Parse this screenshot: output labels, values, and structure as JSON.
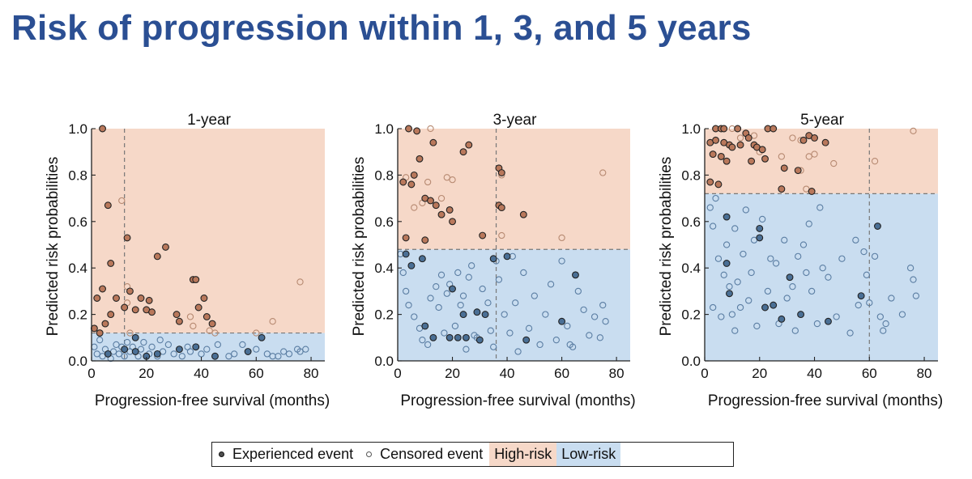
{
  "title": "Risk of progression within 1, 3, and 5 years",
  "colors": {
    "title": "#2b4f93",
    "high_risk_fill": "#f6d8c8",
    "low_risk_fill": "#c9ddf0",
    "event_high": "#b9785b",
    "event_low": "#4a6f95",
    "censored_high": "#b78a72",
    "censored_low": "#5b7ea3"
  },
  "legend": {
    "experienced": "Experienced event",
    "censored": "Censored event",
    "high_risk": "High-risk",
    "low_risk": "Low-risk"
  },
  "chart_data": [
    {
      "type": "scatter",
      "title": "1-year",
      "xlabel": "Progression-free survival (months)",
      "ylabel": "Predicted risk probabilities",
      "xlim": [
        0,
        85
      ],
      "ylim": [
        0,
        1
      ],
      "xticks": [
        "0",
        "20",
        "40",
        "60",
        "80"
      ],
      "yticks": [
        "0.0",
        "0.2",
        "0.4",
        "0.6",
        "0.8",
        "1.0"
      ],
      "threshold": 0.12,
      "time_cutoff": 12,
      "events": [
        [
          4,
          1.0
        ],
        [
          6,
          0.67
        ],
        [
          7,
          0.42
        ],
        [
          2,
          0.27
        ],
        [
          4,
          0.31
        ],
        [
          5,
          0.16
        ],
        [
          7,
          0.2
        ],
        [
          9,
          0.27
        ],
        [
          12,
          0.23
        ],
        [
          13,
          0.53
        ],
        [
          14,
          0.3
        ],
        [
          16,
          0.22
        ],
        [
          18,
          0.27
        ],
        [
          20,
          0.22
        ],
        [
          21,
          0.26
        ],
        [
          22,
          0.21
        ],
        [
          24,
          0.45
        ],
        [
          27,
          0.49
        ],
        [
          31,
          0.2
        ],
        [
          32,
          0.17
        ],
        [
          37,
          0.35
        ],
        [
          38,
          0.35
        ],
        [
          39,
          0.23
        ],
        [
          41,
          0.27
        ],
        [
          42,
          0.19
        ],
        [
          44,
          0.16
        ],
        [
          1,
          0.14
        ],
        [
          3,
          0.12
        ],
        [
          16,
          0.1
        ],
        [
          6,
          0.03
        ],
        [
          12,
          0.05
        ],
        [
          16,
          0.04
        ],
        [
          20,
          0.02
        ],
        [
          24,
          0.03
        ],
        [
          32,
          0.05
        ],
        [
          38,
          0.06
        ],
        [
          45,
          0.02
        ],
        [
          57,
          0.04
        ],
        [
          62,
          0.1
        ]
      ],
      "censored": [
        [
          11,
          0.69
        ],
        [
          13,
          0.32
        ],
        [
          13,
          0.25
        ],
        [
          14,
          0.12
        ],
        [
          36,
          0.19
        ],
        [
          37,
          0.15
        ],
        [
          43,
          0.13
        ],
        [
          45,
          0.12
        ],
        [
          60,
          0.12
        ],
        [
          66,
          0.17
        ],
        [
          76,
          0.34
        ],
        [
          1,
          0.06
        ],
        [
          2,
          0.03
        ],
        [
          3,
          0.09
        ],
        [
          4,
          0.02
        ],
        [
          5,
          0.05
        ],
        [
          7,
          0.01
        ],
        [
          8,
          0.04
        ],
        [
          9,
          0.07
        ],
        [
          10,
          0.03
        ],
        [
          11,
          0.06
        ],
        [
          12,
          0.02
        ],
        [
          13,
          0.08
        ],
        [
          14,
          0.04
        ],
        [
          15,
          0.06
        ],
        [
          17,
          0.02
        ],
        [
          18,
          0.05
        ],
        [
          19,
          0.08
        ],
        [
          21,
          0.03
        ],
        [
          22,
          0.06
        ],
        [
          24,
          0.02
        ],
        [
          25,
          0.09
        ],
        [
          26,
          0.04
        ],
        [
          28,
          0.07
        ],
        [
          30,
          0.03
        ],
        [
          33,
          0.02
        ],
        [
          35,
          0.06
        ],
        [
          36,
          0.04
        ],
        [
          40,
          0.03
        ],
        [
          42,
          0.05
        ],
        [
          46,
          0.07
        ],
        [
          50,
          0.02
        ],
        [
          52,
          0.03
        ],
        [
          55,
          0.07
        ],
        [
          60,
          0.05
        ],
        [
          64,
          0.03
        ],
        [
          66,
          0.02
        ],
        [
          68,
          0.02
        ],
        [
          70,
          0.04
        ],
        [
          72,
          0.03
        ],
        [
          75,
          0.05
        ],
        [
          76,
          0.04
        ],
        [
          78,
          0.05
        ]
      ]
    },
    {
      "type": "scatter",
      "title": "3-year",
      "xlabel": "Progression-free survival (months)",
      "ylabel": "Predicted risk probabilities",
      "xlim": [
        0,
        85
      ],
      "ylim": [
        0,
        1
      ],
      "xticks": [
        "0",
        "20",
        "40",
        "60",
        "80"
      ],
      "yticks": [
        "0.0",
        "0.2",
        "0.4",
        "0.6",
        "0.8",
        "1.0"
      ],
      "threshold": 0.48,
      "time_cutoff": 36,
      "events": [
        [
          4,
          1.0
        ],
        [
          7,
          0.99
        ],
        [
          8,
          0.87
        ],
        [
          6,
          0.8
        ],
        [
          2,
          0.77
        ],
        [
          5,
          0.76
        ],
        [
          10,
          0.7
        ],
        [
          12,
          0.69
        ],
        [
          14,
          0.67
        ],
        [
          16,
          0.63
        ],
        [
          19,
          0.65
        ],
        [
          20,
          0.6
        ],
        [
          24,
          0.9
        ],
        [
          26,
          0.93
        ],
        [
          13,
          0.94
        ],
        [
          10,
          0.52
        ],
        [
          3,
          0.53
        ],
        [
          31,
          0.54
        ],
        [
          37,
          0.83
        ],
        [
          38,
          0.81
        ],
        [
          37,
          0.67
        ],
        [
          38,
          0.66
        ],
        [
          46,
          0.63
        ],
        [
          3,
          0.46
        ],
        [
          5,
          0.41
        ],
        [
          9,
          0.44
        ],
        [
          24,
          0.2
        ],
        [
          29,
          0.21
        ],
        [
          32,
          0.2
        ],
        [
          35,
          0.44
        ],
        [
          40,
          0.45
        ],
        [
          20,
          0.31
        ],
        [
          10,
          0.15
        ],
        [
          13,
          0.1
        ],
        [
          19,
          0.1
        ],
        [
          22,
          0.1
        ],
        [
          25,
          0.1
        ],
        [
          30,
          0.09
        ],
        [
          47,
          0.09
        ],
        [
          60,
          0.17
        ],
        [
          65,
          0.37
        ]
      ],
      "censored": [
        [
          12,
          1.0
        ],
        [
          18,
          0.79
        ],
        [
          20,
          0.78
        ],
        [
          16,
          0.7
        ],
        [
          6,
          0.66
        ],
        [
          9,
          0.68
        ],
        [
          11,
          0.77
        ],
        [
          3,
          0.79
        ],
        [
          38,
          0.8
        ],
        [
          75,
          0.81
        ],
        [
          60,
          0.53
        ],
        [
          38,
          0.54
        ],
        [
          1,
          0.46
        ],
        [
          2,
          0.38
        ],
        [
          3,
          0.3
        ],
        [
          4,
          0.24
        ],
        [
          6,
          0.19
        ],
        [
          8,
          0.14
        ],
        [
          9,
          0.09
        ],
        [
          11,
          0.07
        ],
        [
          12,
          0.27
        ],
        [
          14,
          0.32
        ],
        [
          15,
          0.23
        ],
        [
          16,
          0.37
        ],
        [
          17,
          0.12
        ],
        [
          18,
          0.29
        ],
        [
          19,
          0.33
        ],
        [
          21,
          0.15
        ],
        [
          22,
          0.38
        ],
        [
          23,
          0.24
        ],
        [
          24,
          0.28
        ],
        [
          25,
          0.05
        ],
        [
          26,
          0.36
        ],
        [
          27,
          0.41
        ],
        [
          28,
          0.11
        ],
        [
          29,
          0.1
        ],
        [
          31,
          0.31
        ],
        [
          33,
          0.25
        ],
        [
          34,
          0.13
        ],
        [
          35,
          0.06
        ],
        [
          36,
          0.43
        ],
        [
          37,
          0.35
        ],
        [
          39,
          0.2
        ],
        [
          41,
          0.12
        ],
        [
          42,
          0.45
        ],
        [
          43,
          0.25
        ],
        [
          44,
          0.04
        ],
        [
          46,
          0.38
        ],
        [
          48,
          0.14
        ],
        [
          50,
          0.28
        ],
        [
          52,
          0.07
        ],
        [
          54,
          0.2
        ],
        [
          56,
          0.33
        ],
        [
          58,
          0.09
        ],
        [
          60,
          0.43
        ],
        [
          62,
          0.15
        ],
        [
          63,
          0.07
        ],
        [
          64,
          0.06
        ],
        [
          66,
          0.3
        ],
        [
          68,
          0.22
        ],
        [
          70,
          0.11
        ],
        [
          72,
          0.19
        ],
        [
          74,
          0.1
        ],
        [
          75,
          0.24
        ],
        [
          76,
          0.17
        ]
      ]
    },
    {
      "type": "scatter",
      "title": "5-year",
      "xlabel": "Progression-free survival (months)",
      "ylabel": "Predicted risk probabilities",
      "xlim": [
        0,
        85
      ],
      "ylim": [
        0,
        1
      ],
      "xticks": [
        "0",
        "20",
        "40",
        "60",
        "80"
      ],
      "yticks": [
        "0.0",
        "0.2",
        "0.4",
        "0.6",
        "0.8",
        "1.0"
      ],
      "threshold": 0.72,
      "time_cutoff": 60,
      "events": [
        [
          4,
          1.0
        ],
        [
          6,
          1.0
        ],
        [
          7,
          1.0
        ],
        [
          12,
          1.0
        ],
        [
          15,
          0.98
        ],
        [
          16,
          0.96
        ],
        [
          23,
          1.0
        ],
        [
          25,
          1.0
        ],
        [
          2,
          0.94
        ],
        [
          4,
          0.95
        ],
        [
          7,
          0.94
        ],
        [
          9,
          0.93
        ],
        [
          10,
          0.92
        ],
        [
          13,
          0.93
        ],
        [
          18,
          0.93
        ],
        [
          19,
          0.92
        ],
        [
          21,
          0.91
        ],
        [
          38,
          0.97
        ],
        [
          40,
          0.96
        ],
        [
          44,
          0.94
        ],
        [
          36,
          0.95
        ],
        [
          3,
          0.89
        ],
        [
          6,
          0.88
        ],
        [
          8,
          0.86
        ],
        [
          17,
          0.86
        ],
        [
          22,
          0.87
        ],
        [
          29,
          0.83
        ],
        [
          34,
          0.82
        ],
        [
          5,
          0.76
        ],
        [
          2,
          0.77
        ],
        [
          28,
          0.74
        ],
        [
          39,
          0.73
        ],
        [
          8,
          0.62
        ],
        [
          8,
          0.42
        ],
        [
          20,
          0.53
        ],
        [
          9,
          0.29
        ],
        [
          28,
          0.18
        ],
        [
          31,
          0.36
        ],
        [
          35,
          0.2
        ],
        [
          45,
          0.17
        ],
        [
          57,
          0.28
        ],
        [
          63,
          0.58
        ],
        [
          20,
          0.57
        ],
        [
          22,
          0.23
        ],
        [
          25,
          0.24
        ]
      ],
      "censored": [
        [
          10,
          1.0
        ],
        [
          13,
          0.96
        ],
        [
          18,
          0.97
        ],
        [
          20,
          0.9
        ],
        [
          28,
          0.88
        ],
        [
          32,
          0.96
        ],
        [
          35,
          0.95
        ],
        [
          38,
          0.88
        ],
        [
          40,
          0.89
        ],
        [
          35,
          0.82
        ],
        [
          37,
          0.74
        ],
        [
          47,
          0.85
        ],
        [
          62,
          0.86
        ],
        [
          76,
          0.99
        ],
        [
          2,
          0.66
        ],
        [
          3,
          0.58
        ],
        [
          4,
          0.7
        ],
        [
          5,
          0.44
        ],
        [
          7,
          0.37
        ],
        [
          8,
          0.5
        ],
        [
          9,
          0.32
        ],
        [
          10,
          0.2
        ],
        [
          11,
          0.57
        ],
        [
          12,
          0.34
        ],
        [
          13,
          0.23
        ],
        [
          14,
          0.46
        ],
        [
          15,
          0.65
        ],
        [
          16,
          0.26
        ],
        [
          17,
          0.38
        ],
        [
          18,
          0.52
        ],
        [
          19,
          0.15
        ],
        [
          21,
          0.61
        ],
        [
          23,
          0.3
        ],
        [
          24,
          0.44
        ],
        [
          26,
          0.42
        ],
        [
          27,
          0.16
        ],
        [
          29,
          0.52
        ],
        [
          30,
          0.27
        ],
        [
          32,
          0.32
        ],
        [
          33,
          0.13
        ],
        [
          34,
          0.45
        ],
        [
          36,
          0.5
        ],
        [
          37,
          0.38
        ],
        [
          38,
          0.59
        ],
        [
          39,
          0.3
        ],
        [
          41,
          0.16
        ],
        [
          42,
          0.66
        ],
        [
          43,
          0.4
        ],
        [
          45,
          0.36
        ],
        [
          48,
          0.19
        ],
        [
          50,
          0.44
        ],
        [
          53,
          0.12
        ],
        [
          55,
          0.52
        ],
        [
          56,
          0.24
        ],
        [
          58,
          0.47
        ],
        [
          59,
          0.37
        ],
        [
          62,
          0.45
        ],
        [
          64,
          0.19
        ],
        [
          65,
          0.13
        ],
        [
          66,
          0.16
        ],
        [
          68,
          0.27
        ],
        [
          72,
          0.2
        ],
        [
          75,
          0.4
        ],
        [
          76,
          0.35
        ],
        [
          77,
          0.28
        ],
        [
          60,
          0.25
        ],
        [
          3,
          0.23
        ],
        [
          6,
          0.19
        ],
        [
          11,
          0.13
        ]
      ]
    }
  ]
}
